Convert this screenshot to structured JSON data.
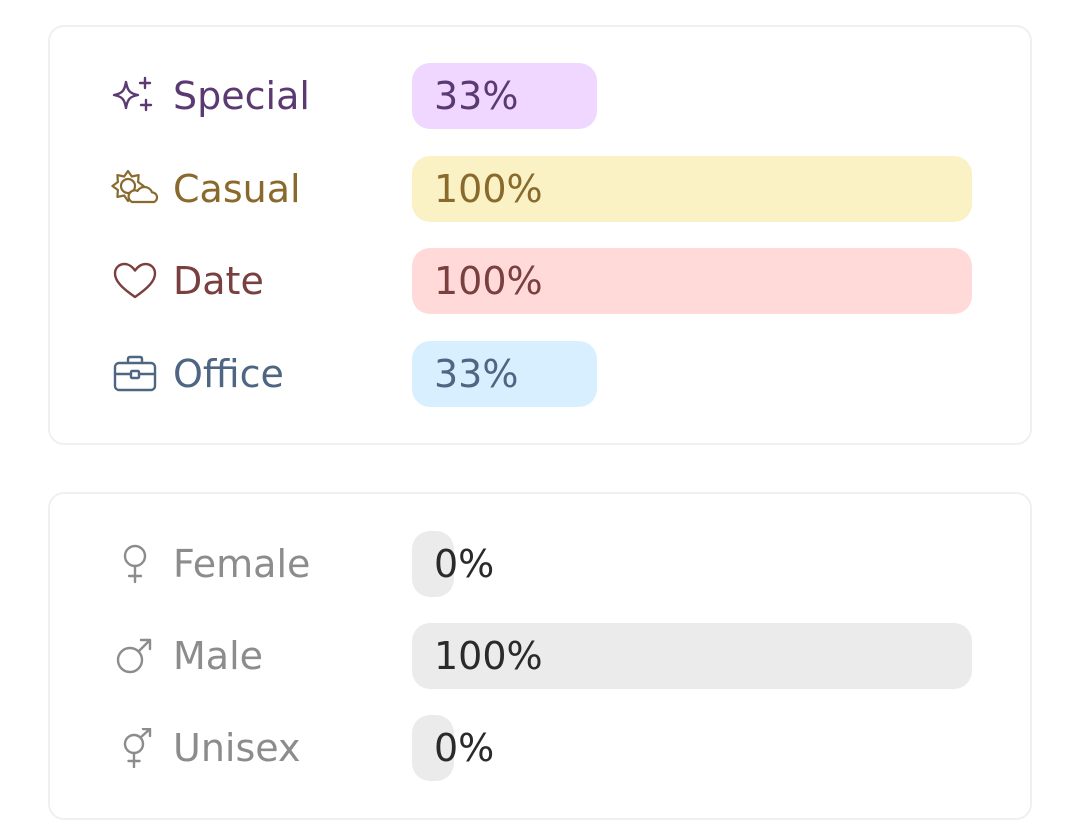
{
  "occasion": {
    "items": [
      {
        "label": "Special",
        "value": "33%",
        "fraction": 0.33,
        "icon": "sparkles-icon",
        "text_color": "#5b3a73",
        "bar_color": "#f0d7ff"
      },
      {
        "label": "Casual",
        "value": "100%",
        "fraction": 1.0,
        "icon": "sun-cloud-icon",
        "text_color": "#8a6a2c",
        "bar_color": "#faf1c4"
      },
      {
        "label": "Date",
        "value": "100%",
        "fraction": 1.0,
        "icon": "heart-icon",
        "text_color": "#7a3f3f",
        "bar_color": "#ffdad8"
      },
      {
        "label": "Office",
        "value": "33%",
        "fraction": 0.33,
        "icon": "briefcase-icon",
        "text_color": "#4f6682",
        "bar_color": "#d8efff"
      }
    ]
  },
  "gender": {
    "items": [
      {
        "label": "Female",
        "value": "0%",
        "fraction": 0.0,
        "icon": "female-icon",
        "text_color": "#8c8c8c",
        "value_color": "#2a2a2a",
        "bar_color": "#ebebeb"
      },
      {
        "label": "Male",
        "value": "100%",
        "fraction": 1.0,
        "icon": "male-icon",
        "text_color": "#8c8c8c",
        "value_color": "#2a2a2a",
        "bar_color": "#ebebeb"
      },
      {
        "label": "Unisex",
        "value": "0%",
        "fraction": 0.0,
        "icon": "unisex-icon",
        "text_color": "#8c8c8c",
        "value_color": "#2a2a2a",
        "bar_color": "#ebebeb"
      }
    ]
  }
}
